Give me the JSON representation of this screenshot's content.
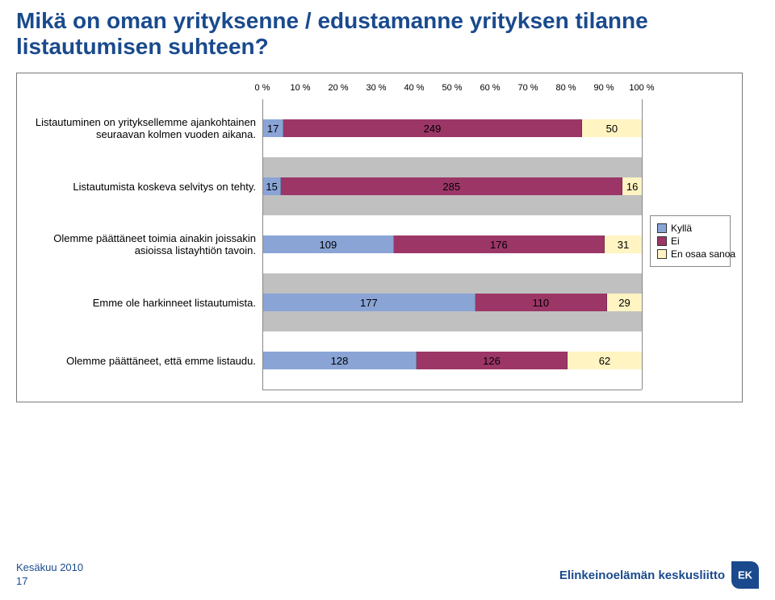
{
  "title_line1": "Mikä on oman yrityksenne / edustamanne yrityksen tilanne",
  "title_line2": "listautumisen suhteen?",
  "chart": {
    "type": "stacked-bar-horizontal-100pct",
    "axis_ticks": [
      "0 %",
      "10 %",
      "20 %",
      "30 %",
      "40 %",
      "50 %",
      "60 %",
      "70 %",
      "80 %",
      "90 %",
      "100 %"
    ],
    "axis_positions_pct": [
      0,
      10,
      20,
      30,
      40,
      50,
      60,
      70,
      80,
      90,
      100
    ],
    "grid_color": "#888888",
    "band_color_a": "#ffffff",
    "band_color_b": "#c0c0c0",
    "series": [
      {
        "label": "Kyllä",
        "color": "#8aa4d6"
      },
      {
        "label": "Ei",
        "color": "#9c3667"
      },
      {
        "label": "En osaa sanoa",
        "color": "#fff4c2"
      }
    ],
    "rows": [
      {
        "label": "Listautuminen on yrityksellemme ajankohtainen seuraavan kolmen vuoden aikana.",
        "values": [
          17,
          249,
          50
        ]
      },
      {
        "label": "Listautumista koskeva selvitys on tehty.",
        "values": [
          15,
          285,
          16
        ]
      },
      {
        "label": "Olemme päättäneet toimia ainakin joissakin asioissa listayhtiön tavoin.",
        "values": [
          109,
          176,
          31
        ]
      },
      {
        "label": "Emme ole harkinneet listautumista.",
        "values": [
          177,
          110,
          29
        ]
      },
      {
        "label": "Olemme päättäneet, että emme listaudu.",
        "values": [
          128,
          126,
          62
        ]
      }
    ]
  },
  "footer": {
    "date": "Kesäkuu 2010",
    "page": "17",
    "org": "Elinkeinoelämän keskusliitto"
  }
}
